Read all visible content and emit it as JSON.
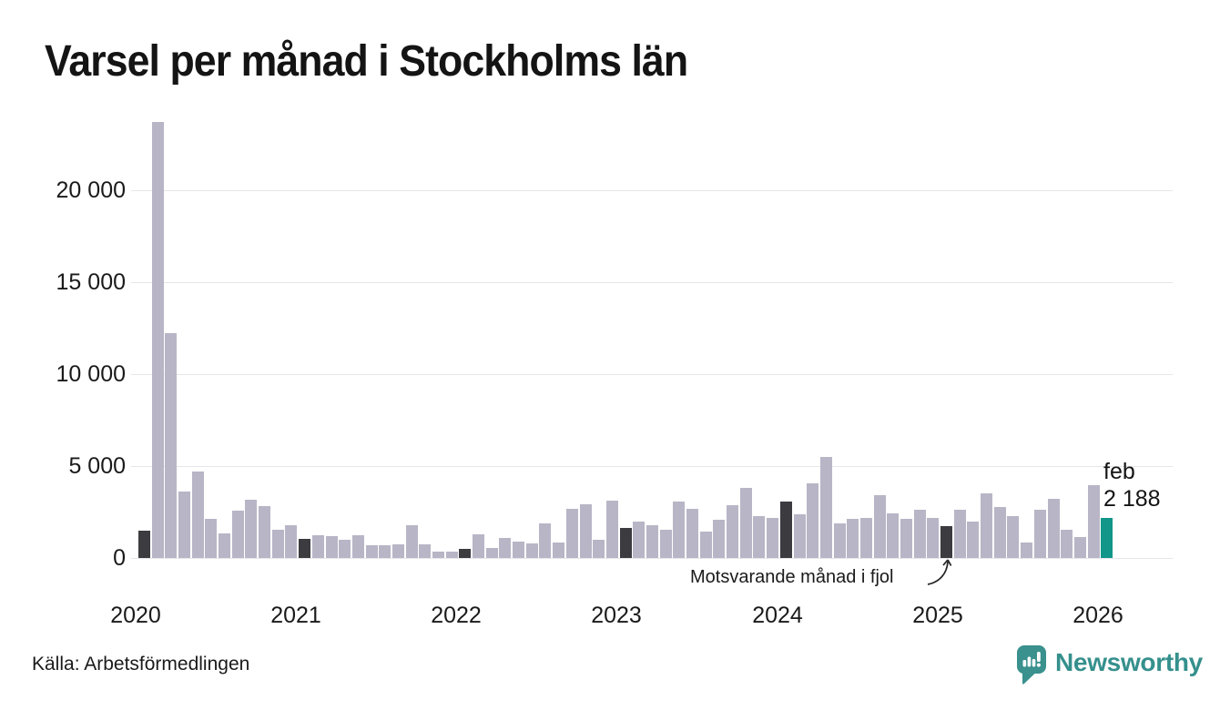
{
  "title": "Varsel per månad i Stockholms län",
  "annotation": {
    "text": "Motsvarande månad i fjol"
  },
  "current_label": {
    "line1": "feb",
    "line2": "2 188"
  },
  "footer": {
    "source": "Källa: Arbetsförmedlingen",
    "brand": "Newsworthy"
  },
  "colors": {
    "bar": "#b8b5c6",
    "bar_fjol": "#3b3b40",
    "bar_current": "#119689",
    "brand": "#35908d",
    "grid": "#e7e7eb",
    "text": "#141414"
  },
  "chart_data": {
    "type": "bar",
    "title": "Varsel per månad i Stockholms län",
    "xlabel": "",
    "ylabel": "",
    "grid": true,
    "legend_position": "none",
    "ylim": [
      0,
      24000
    ],
    "yticks": [
      0,
      5000,
      10000,
      15000,
      20000
    ],
    "ytick_labels": [
      "0",
      "5 000",
      "10 000",
      "15 000",
      "20 000"
    ],
    "year_ticks": [
      2020,
      2021,
      2022,
      2023,
      2024,
      2025,
      2026
    ],
    "x": [
      "feb 2020",
      "mar 2020",
      "apr 2020",
      "maj 2020",
      "jun 2020",
      "jul 2020",
      "aug 2020",
      "sep 2020",
      "okt 2020",
      "nov 2020",
      "dec 2020",
      "jan 2021",
      "feb 2021",
      "mar 2021",
      "apr 2021",
      "maj 2021",
      "jun 2021",
      "jul 2021",
      "aug 2021",
      "sep 2021",
      "okt 2021",
      "nov 2021",
      "dec 2021",
      "jan 2022",
      "feb 2022",
      "mar 2022",
      "apr 2022",
      "maj 2022",
      "jun 2022",
      "jul 2022",
      "aug 2022",
      "sep 2022",
      "okt 2022",
      "nov 2022",
      "dec 2022",
      "jan 2023",
      "feb 2023",
      "mar 2023",
      "apr 2023",
      "maj 2023",
      "jun 2023",
      "jul 2023",
      "aug 2023",
      "sep 2023",
      "okt 2023",
      "nov 2023",
      "dec 2023",
      "jan 2024",
      "feb 2024",
      "mar 2024",
      "apr 2024",
      "maj 2024",
      "jun 2024",
      "jul 2024",
      "aug 2024",
      "sep 2024",
      "okt 2024",
      "nov 2024",
      "dec 2024",
      "jan 2025",
      "feb 2025",
      "mar 2025",
      "apr 2025",
      "maj 2025",
      "jun 2025",
      "jul 2025",
      "aug 2025",
      "sep 2025",
      "okt 2025",
      "nov 2025",
      "dec 2025",
      "jan 2026",
      "feb 2026"
    ],
    "values": [
      1500,
      23700,
      12250,
      3630,
      4720,
      2140,
      1340,
      2580,
      3180,
      2830,
      1540,
      1790,
      1040,
      1240,
      1190,
      990,
      1240,
      700,
      700,
      750,
      1790,
      760,
      350,
      350,
      500,
      1290,
      550,
      1090,
      890,
      800,
      1890,
      840,
      2680,
      2930,
      990,
      3130,
      1640,
      1990,
      1790,
      1540,
      3080,
      2680,
      1440,
      2090,
      2880,
      3830,
      2290,
      2190,
      3080,
      2390,
      4080,
      5500,
      1890,
      2140,
      2190,
      3430,
      2440,
      2140,
      2630,
      2190,
      1740,
      2630,
      1990,
      3530,
      2780,
      2290,
      840,
      2630,
      3230,
      1540,
      1140,
      3980,
      2188
    ],
    "highlight_indices": [
      0,
      12,
      24,
      36,
      48,
      60
    ],
    "highlight_meaning": "Motsvarande månad i fjol",
    "current_index": 72,
    "current_value_label": "feb 2 188"
  }
}
